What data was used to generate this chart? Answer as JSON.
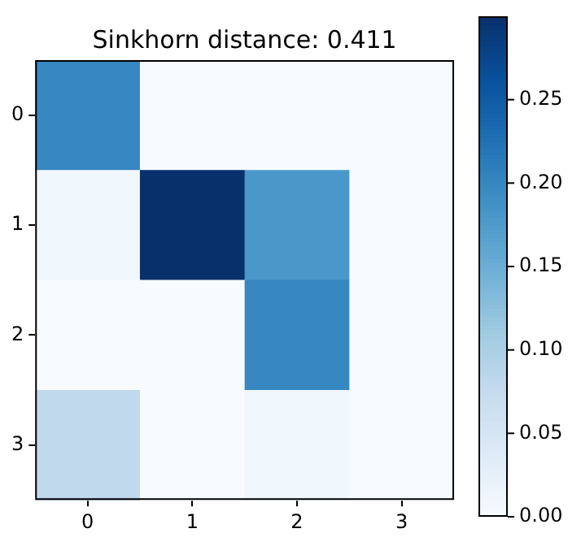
{
  "chart_data": {
    "type": "heatmap",
    "title": "Sinkhorn distance: 0.411",
    "categories": [
      "0",
      "1",
      "2",
      "3"
    ],
    "y_categories": [
      "0",
      "1",
      "2",
      "3"
    ],
    "cells": [
      [
        0.2,
        0,
        0,
        0
      ],
      [
        0.01,
        0.3,
        0.18,
        0
      ],
      [
        0,
        0,
        0.2,
        0
      ],
      [
        0.08,
        0,
        0.01,
        0
      ]
    ],
    "clim": [
      0,
      0.3
    ],
    "cticks": [
      {
        "value": 0,
        "label": "0.00"
      },
      {
        "value": 0.05,
        "label": "0.05"
      },
      {
        "value": 0.1,
        "label": "0.10"
      },
      {
        "value": 0.15,
        "label": "0.15"
      },
      {
        "value": 0.2,
        "label": "0.20"
      },
      {
        "value": 0.25,
        "label": "0.25"
      }
    ]
  }
}
